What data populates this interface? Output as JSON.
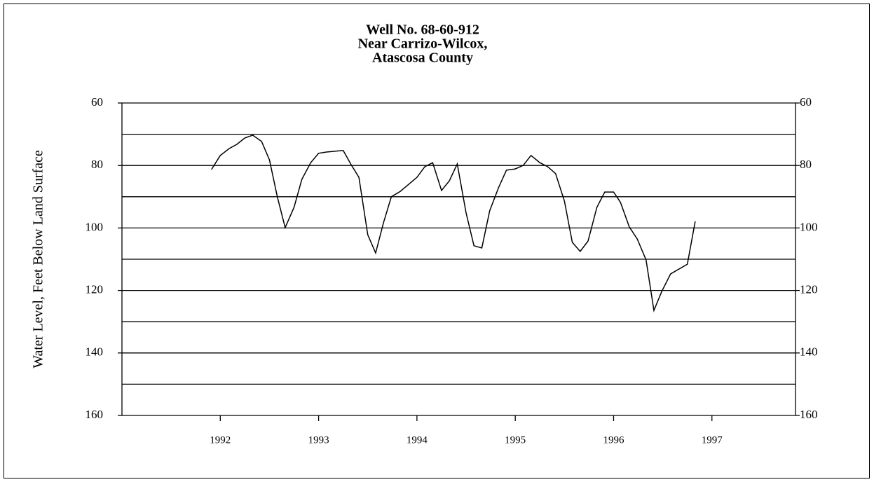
{
  "chart_data": {
    "type": "line",
    "title": [
      "Well No. 68-60-912",
      "Near Carrizo-Wilcox,",
      "Atascosa County"
    ],
    "y_label": "Water Level, Feet Below Land Surface",
    "x": [
      1991.91,
      1992.0,
      1992.09,
      1992.17,
      1992.25,
      1992.33,
      1992.42,
      1992.5,
      1992.58,
      1992.66,
      1992.75,
      1992.83,
      1992.92,
      1993.0,
      1993.08,
      1993.25,
      1993.33,
      1993.41,
      1993.5,
      1993.58,
      1993.66,
      1993.74,
      1993.83,
      1993.91,
      1994.0,
      1994.08,
      1994.16,
      1994.25,
      1994.33,
      1994.41,
      1994.5,
      1994.58,
      1994.66,
      1994.74,
      1994.83,
      1994.91,
      1995.0,
      1995.08,
      1995.16,
      1995.25,
      1995.33,
      1995.41,
      1995.5,
      1995.58,
      1995.66,
      1995.74,
      1995.83,
      1995.91,
      1996.0,
      1996.07,
      1996.16,
      1996.24,
      1996.33,
      1996.41,
      1996.49,
      1996.58,
      1996.75,
      1996.83
    ],
    "series": [
      {
        "color": "#000000",
        "values": [
          81.3,
          76.8,
          74.6,
          73.2,
          71.2,
          70.3,
          72.3,
          78.2,
          90.0,
          99.9,
          93.4,
          84.4,
          79.1,
          76.1,
          75.7,
          75.2,
          79.7,
          83.8,
          102.2,
          108.0,
          98.3,
          90.0,
          88.3,
          86.2,
          83.8,
          80.4,
          79.1,
          88.0,
          84.9,
          79.5,
          95.2,
          105.7,
          106.4,
          94.5,
          87.1,
          81.5,
          81.1,
          80.0,
          76.8,
          79.1,
          80.4,
          82.6,
          91.4,
          104.6,
          107.5,
          104.2,
          93.4,
          88.5,
          88.5,
          91.8,
          99.7,
          103.5,
          110.2,
          126.4,
          120.3,
          114.7,
          111.6,
          97.9
        ]
      }
    ],
    "xlim": [
      1991.0,
      1997.85
    ],
    "xticks": [
      1992,
      1993,
      1994,
      1995,
      1996,
      1997
    ],
    "ylim": [
      60,
      160
    ],
    "yticks": [
      60,
      80,
      100,
      120,
      140,
      160
    ],
    "y_inverted": true,
    "yminorticks": [
      70,
      90,
      110,
      130,
      150
    ],
    "y2lim": [
      60,
      160
    ],
    "y2ticks": [
      60,
      80,
      100,
      120,
      140,
      160
    ],
    "grid": true
  }
}
